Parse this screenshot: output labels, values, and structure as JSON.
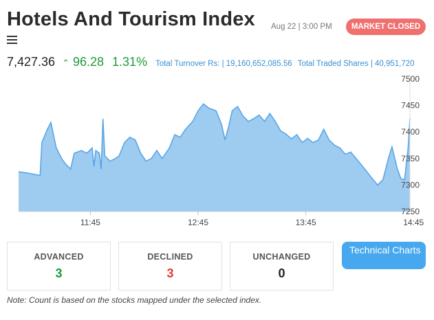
{
  "header": {
    "title": "Hotels And Tourism Index",
    "timestamp": "Aug 22 | 3:00 PM",
    "market_status": "MARKET CLOSED"
  },
  "quote": {
    "value": "7,427.36",
    "change": "96.28",
    "percent": "1.31%",
    "turnover": "Total Turnover Rs: | 19,160,652,085.56",
    "traded_shares": "Total Traded Shares | 40,951,720"
  },
  "chart_data": {
    "type": "area",
    "title": "",
    "xlabel": "",
    "ylabel": "",
    "ylim": [
      7250,
      7500
    ],
    "y_ticks": [
      7500,
      7450,
      7400,
      7350,
      7300,
      7250
    ],
    "x_ticks": [
      "11:45",
      "12:45",
      "13:45",
      "14:45"
    ],
    "grid": false,
    "series": [
      {
        "values": [
          [
            "11:05",
            7325
          ],
          [
            "11:11",
            7322
          ],
          [
            "11:17",
            7318
          ],
          [
            "11:18",
            7380
          ],
          [
            "11:21",
            7405
          ],
          [
            "11:23",
            7418
          ],
          [
            "11:26",
            7370
          ],
          [
            "11:29",
            7350
          ],
          [
            "11:31",
            7340
          ],
          [
            "11:34",
            7330
          ],
          [
            "11:36",
            7360
          ],
          [
            "11:40",
            7365
          ],
          [
            "11:43",
            7360
          ],
          [
            "11:46",
            7370
          ],
          [
            "11:47",
            7335
          ],
          [
            "11:48",
            7365
          ],
          [
            "11:50",
            7360
          ],
          [
            "11:51",
            7330
          ],
          [
            "11:52",
            7425
          ],
          [
            "11:53",
            7355
          ],
          [
            "11:56",
            7345
          ],
          [
            "11:59",
            7350
          ],
          [
            "12:01",
            7355
          ],
          [
            "12:04",
            7380
          ],
          [
            "12:07",
            7390
          ],
          [
            "12:10",
            7385
          ],
          [
            "12:13",
            7360
          ],
          [
            "12:16",
            7345
          ],
          [
            "12:19",
            7350
          ],
          [
            "12:22",
            7365
          ],
          [
            "12:25",
            7350
          ],
          [
            "12:29",
            7370
          ],
          [
            "12:32",
            7395
          ],
          [
            "12:35",
            7390
          ],
          [
            "12:38",
            7405
          ],
          [
            "12:42",
            7420
          ],
          [
            "12:45",
            7440
          ],
          [
            "12:48",
            7453
          ],
          [
            "12:51",
            7445
          ],
          [
            "12:55",
            7440
          ],
          [
            "12:58",
            7415
          ],
          [
            "13:00",
            7385
          ],
          [
            "13:02",
            7410
          ],
          [
            "13:04",
            7440
          ],
          [
            "13:07",
            7448
          ],
          [
            "13:10",
            7430
          ],
          [
            "13:13",
            7420
          ],
          [
            "13:16",
            7425
          ],
          [
            "13:19",
            7432
          ],
          [
            "13:22",
            7420
          ],
          [
            "13:25",
            7435
          ],
          [
            "13:28",
            7420
          ],
          [
            "13:31",
            7402
          ],
          [
            "13:34",
            7396
          ],
          [
            "13:37",
            7387
          ],
          [
            "13:40",
            7395
          ],
          [
            "13:43",
            7380
          ],
          [
            "13:46",
            7388
          ],
          [
            "13:49",
            7380
          ],
          [
            "13:52",
            7385
          ],
          [
            "13:55",
            7405
          ],
          [
            "13:58",
            7385
          ],
          [
            "14:01",
            7375
          ],
          [
            "14:04",
            7370
          ],
          [
            "14:07",
            7358
          ],
          [
            "14:10",
            7362
          ],
          [
            "14:13",
            7350
          ],
          [
            "14:16",
            7338
          ],
          [
            "14:19",
            7325
          ],
          [
            "14:22",
            7312
          ],
          [
            "14:25",
            7300
          ],
          [
            "14:28",
            7310
          ],
          [
            "14:31",
            7350
          ],
          [
            "14:33",
            7372
          ],
          [
            "14:36",
            7330
          ],
          [
            "14:38",
            7312
          ],
          [
            "14:40",
            7310
          ],
          [
            "14:42",
            7370
          ],
          [
            "14:43",
            7425
          ]
        ]
      }
    ]
  },
  "stats": {
    "advanced_label": "ADVANCED",
    "advanced_value": "3",
    "declined_label": "DECLINED",
    "declined_value": "3",
    "unchanged_label": "UNCHANGED",
    "unchanged_value": "0"
  },
  "technical_button": "Technical Charts",
  "note": "Note: Count is based on the stocks mapped under the selected index.",
  "colors": {
    "positive": "#1e9a3a",
    "negative": "#e53935",
    "accent": "#47a8ef",
    "badge": "#f07070",
    "area_fill": "#9ecbf0",
    "area_line": "#5aa6e6"
  }
}
